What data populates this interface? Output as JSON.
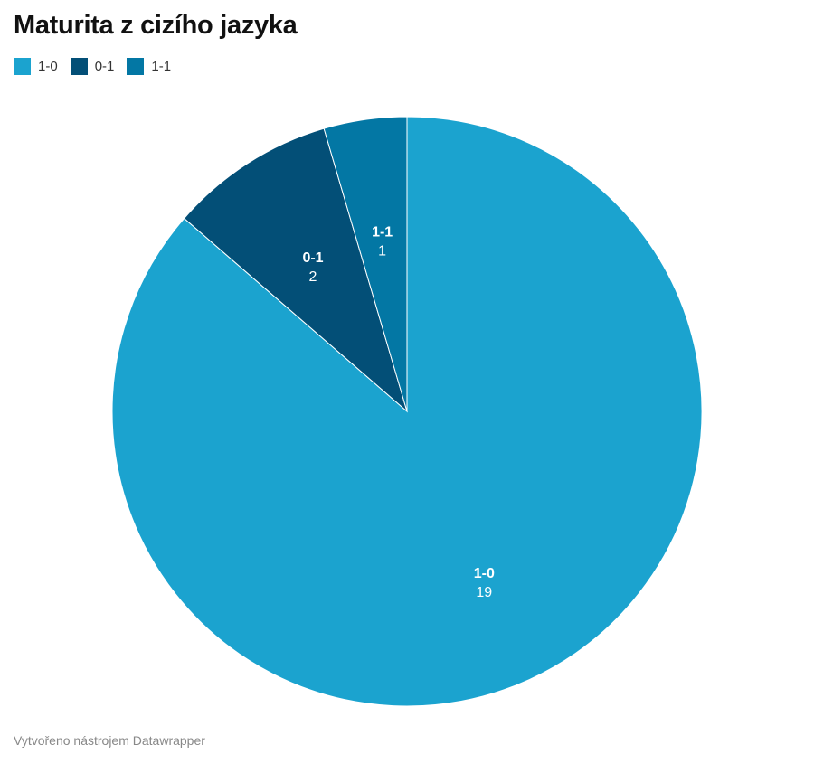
{
  "title": "Maturita z cizího jazyka",
  "footer": "Vytvořeno nástrojem Datawrapper",
  "chart_data": {
    "type": "pie",
    "title": "Maturita z cizího jazyka",
    "legend": "top-left",
    "slices": [
      {
        "label": "1-0",
        "value": 19,
        "color": "#1ba3cf"
      },
      {
        "label": "0-1",
        "value": 2,
        "color": "#034f77"
      },
      {
        "label": "1-1",
        "value": 1,
        "color": "#0377a4"
      }
    ]
  }
}
